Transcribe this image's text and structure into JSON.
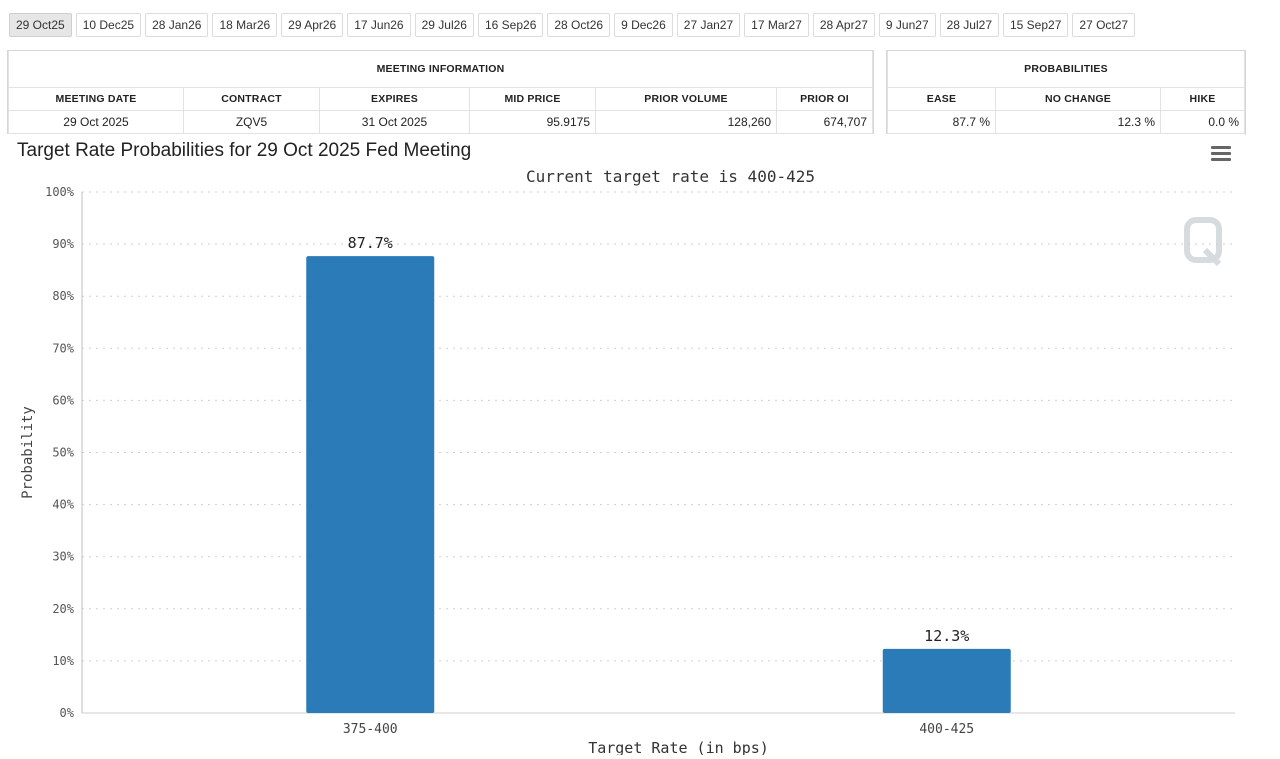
{
  "tabs": [
    {
      "label": "29 Oct25",
      "active": true
    },
    {
      "label": "10 Dec25"
    },
    {
      "label": "28 Jan26"
    },
    {
      "label": "18 Mar26"
    },
    {
      "label": "29 Apr26"
    },
    {
      "label": "17 Jun26"
    },
    {
      "label": "29 Jul26"
    },
    {
      "label": "16 Sep26"
    },
    {
      "label": "28 Oct26"
    },
    {
      "label": "9 Dec26"
    },
    {
      "label": "27 Jan27"
    },
    {
      "label": "17 Mar27"
    },
    {
      "label": "28 Apr27"
    },
    {
      "label": "9 Jun27"
    },
    {
      "label": "28 Jul27"
    },
    {
      "label": "15 Sep27"
    },
    {
      "label": "27 Oct27"
    }
  ],
  "meeting_info": {
    "section_title": "MEETING INFORMATION",
    "headers": {
      "meeting_date": "MEETING DATE",
      "contract": "CONTRACT",
      "expires": "EXPIRES",
      "mid_price": "MID PRICE",
      "prior_volume": "PRIOR VOLUME",
      "prior_oi": "PRIOR OI"
    },
    "values": {
      "meeting_date": "29 Oct 2025",
      "contract": "ZQV5",
      "expires": "31 Oct 2025",
      "mid_price": "95.9175",
      "prior_volume": "128,260",
      "prior_oi": "674,707"
    }
  },
  "probabilities": {
    "section_title": "PROBABILITIES",
    "headers": {
      "ease": "EASE",
      "no_change": "NO CHANGE",
      "hike": "HIKE"
    },
    "values": {
      "ease": "87.7 %",
      "no_change": "12.3 %",
      "hike": "0.0 %"
    }
  },
  "menu_icon": "hamburger-menu-icon",
  "watermark_icon": "q-logo-icon",
  "chart_data": {
    "type": "bar",
    "title": "Target Rate Probabilities for 29 Oct 2025 Fed Meeting",
    "subtitle": "Current target rate is 400-425",
    "xlabel": "Target Rate (in bps)",
    "ylabel": "Probability",
    "categories": [
      "375-400",
      "400-425"
    ],
    "values": [
      87.7,
      12.3
    ],
    "data_labels": [
      "87.7%",
      "12.3%"
    ],
    "ylim": [
      0,
      100
    ],
    "yticks": [
      "0%",
      "10%",
      "20%",
      "30%",
      "40%",
      "50%",
      "60%",
      "70%",
      "80%",
      "90%",
      "100%"
    ],
    "grid": true,
    "bar_color": "#2b7bb9"
  }
}
